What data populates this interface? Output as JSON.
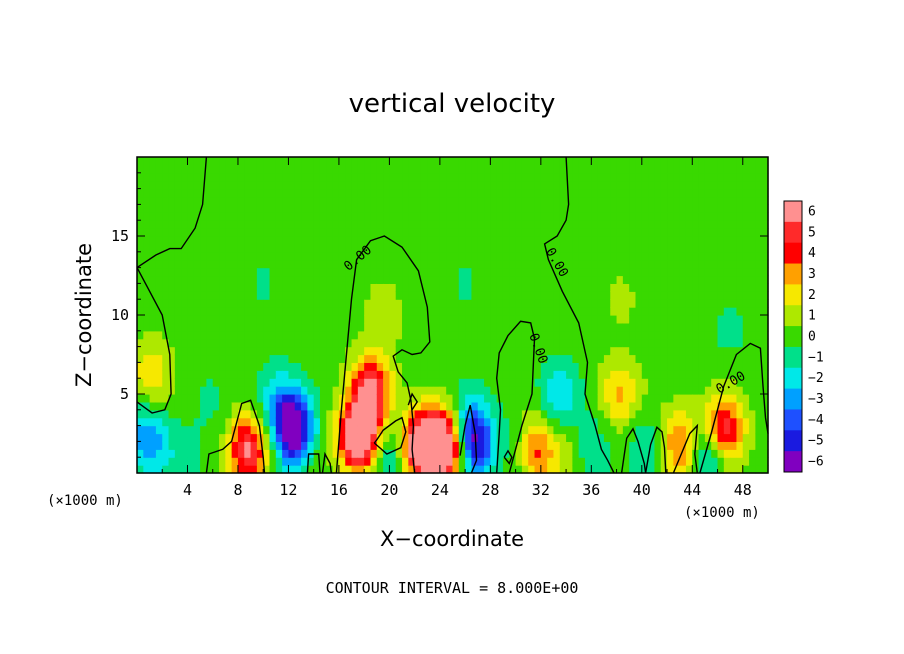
{
  "chart_data": {
    "type": "heatmap",
    "title": "vertical velocity",
    "xlabel": "X−coordinate",
    "ylabel": "Z−coordinate",
    "x_unit_left": "(×1000 m)",
    "x_unit_right": "(×1000 m)",
    "xlim": [
      0,
      50
    ],
    "ylim": [
      0,
      20
    ],
    "x_ticks": [
      "4",
      "8",
      "12",
      "16",
      "20",
      "24",
      "28",
      "32",
      "36",
      "40",
      "44",
      "48"
    ],
    "y_ticks": [
      "5",
      "10",
      "15"
    ],
    "footer": "CONTOUR INTERVAL = 8.000E+00",
    "contour_label": "0.00",
    "colorbar": {
      "levels": [
        "6",
        "5",
        "4",
        "3",
        "2",
        "1",
        "0",
        "−1",
        "−2",
        "−3",
        "−4",
        "−5",
        "−6"
      ],
      "colors": [
        "#ff9090",
        "#ff2a2a",
        "#ff0000",
        "#ffa000",
        "#f6e800",
        "#aee800",
        "#39d900",
        "#00e08a",
        "#00e8e8",
        "#00a0ff",
        "#1e50ff",
        "#1a1ae0",
        "#8000c0"
      ]
    },
    "features": [
      {
        "x": 1.2,
        "z": 6.2,
        "w": 0.4
      },
      {
        "x": 0.8,
        "z": 2.5,
        "w": -0.45
      },
      {
        "x": 1.8,
        "z": 1.3,
        "w": -0.35
      },
      {
        "x": 2.4,
        "z": 1.5,
        "w": 0.35
      },
      {
        "x": 3.3,
        "z": 1.2,
        "w": -0.3
      },
      {
        "x": 6.0,
        "z": 4.5,
        "w": -0.12
      },
      {
        "x": 8.8,
        "z": 1.5,
        "w": 0.95
      },
      {
        "x": 10.8,
        "z": 5.0,
        "w": -0.2
      },
      {
        "x": 12.0,
        "z": 3.5,
        "w": -0.7
      },
      {
        "x": 12.8,
        "z": 2.2,
        "w": -0.8
      },
      {
        "x": 14.2,
        "z": 1.3,
        "w": 0.35
      },
      {
        "x": 15.5,
        "z": 1.6,
        "w": -0.3
      },
      {
        "x": 16.5,
        "z": 2.2,
        "w": 0.4
      },
      {
        "x": 18.5,
        "z": 5.2,
        "w": 1.0
      },
      {
        "x": 17.8,
        "z": 2.2,
        "w": 1.1
      },
      {
        "x": 19.5,
        "z": 10.0,
        "w": 0.2
      },
      {
        "x": 20.0,
        "z": 1.2,
        "w": -0.4
      },
      {
        "x": 22.5,
        "z": 1.8,
        "w": 1.3
      },
      {
        "x": 24.5,
        "z": 1.8,
        "w": 1.3
      },
      {
        "x": 26.3,
        "z": 3.0,
        "w": -0.55
      },
      {
        "x": 27.0,
        "z": 1.5,
        "w": -0.8
      },
      {
        "x": 28.5,
        "z": 1.2,
        "w": 0.25
      },
      {
        "x": 30.0,
        "z": 1.5,
        "w": -0.35
      },
      {
        "x": 31.5,
        "z": 1.5,
        "w": 0.7
      },
      {
        "x": 33.5,
        "z": 4.8,
        "w": -0.4
      },
      {
        "x": 34.0,
        "z": 1.2,
        "w": 0.2
      },
      {
        "x": 36.0,
        "z": 1.5,
        "w": -0.25
      },
      {
        "x": 38.3,
        "z": 5.0,
        "w": 0.45
      },
      {
        "x": 38.3,
        "z": 11.0,
        "w": 0.12
      },
      {
        "x": 40.5,
        "z": 1.5,
        "w": -0.3
      },
      {
        "x": 42.5,
        "z": 2.0,
        "w": 0.3
      },
      {
        "x": 43.5,
        "z": 1.5,
        "w": 0.5
      },
      {
        "x": 45.0,
        "z": 1.2,
        "w": -0.6
      },
      {
        "x": 46.5,
        "z": 2.8,
        "w": 0.9
      },
      {
        "x": 47.0,
        "z": 9.0,
        "w": -0.12
      },
      {
        "x": 10.0,
        "z": 12.0,
        "w": -0.1
      },
      {
        "x": 26.0,
        "z": 12.0,
        "w": -0.1
      }
    ]
  }
}
